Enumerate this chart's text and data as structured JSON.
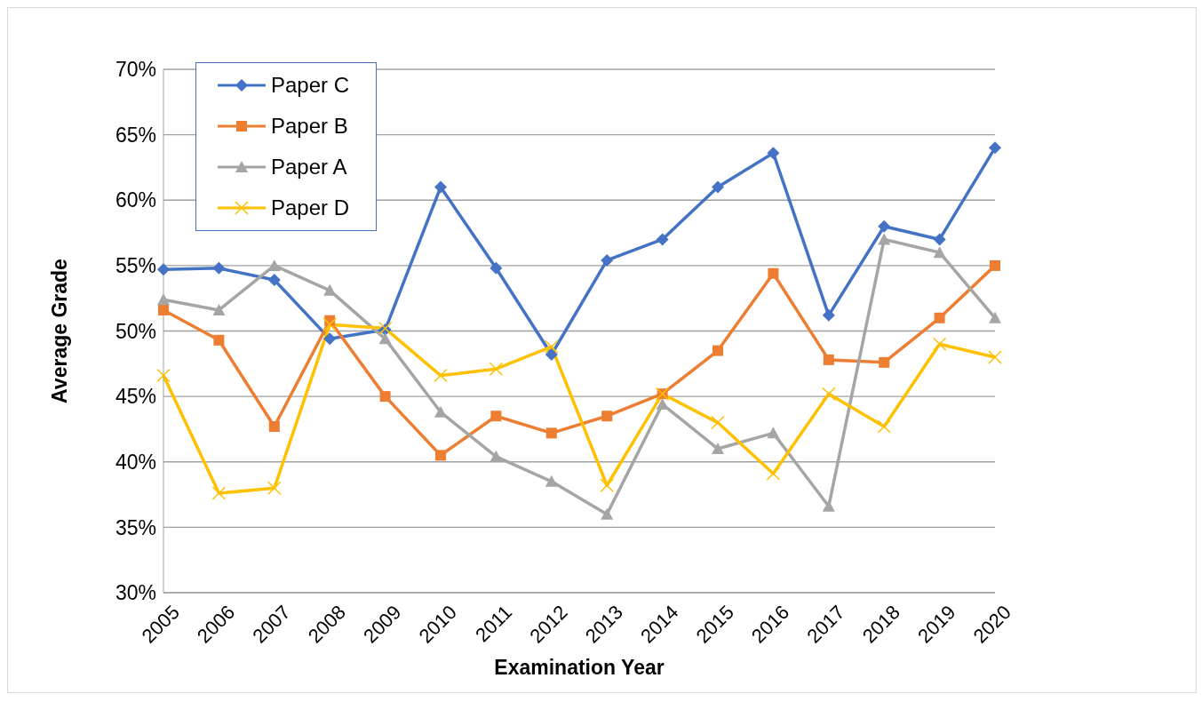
{
  "chart_data": {
    "type": "line",
    "xlabel": "Examination Year",
    "ylabel": "Average Grade",
    "categories": [
      "2005",
      "2006",
      "2007",
      "2008",
      "2009",
      "2010",
      "2011",
      "2012",
      "2013",
      "2014",
      "2015",
      "2016",
      "2017",
      "2018",
      "2019",
      "2020"
    ],
    "series": [
      {
        "name": "Paper C",
        "color": "#4472c4",
        "marker": "diamond",
        "values": [
          54.7,
          54.8,
          53.9,
          49.4,
          50.1,
          61.0,
          54.8,
          48.2,
          55.4,
          57.0,
          61.0,
          63.6,
          51.2,
          58.0,
          57.0,
          64.0
        ]
      },
      {
        "name": "Paper B",
        "color": "#ed7d31",
        "marker": "square",
        "values": [
          51.6,
          49.3,
          42.7,
          50.8,
          45.0,
          40.5,
          43.5,
          42.2,
          43.5,
          45.2,
          48.5,
          54.4,
          47.8,
          47.6,
          51.0,
          55.0
        ]
      },
      {
        "name": "Paper A",
        "color": "#a5a5a5",
        "marker": "triangle",
        "values": [
          52.4,
          51.6,
          55.0,
          53.1,
          49.4,
          43.8,
          40.4,
          38.5,
          36.0,
          44.4,
          41.0,
          42.2,
          36.6,
          57.0,
          56.0,
          51.0
        ]
      },
      {
        "name": "Paper D",
        "color": "#ffc000",
        "marker": "cross",
        "values": [
          46.6,
          37.6,
          38.0,
          50.5,
          50.2,
          46.6,
          47.1,
          48.8,
          38.2,
          45.2,
          43.0,
          39.1,
          45.2,
          42.7,
          49.0,
          48.0
        ]
      }
    ],
    "ylim": [
      30,
      70
    ],
    "yticks": [
      {
        "value": 30,
        "label": "30%"
      },
      {
        "value": 35,
        "label": "35%"
      },
      {
        "value": 40,
        "label": "40%"
      },
      {
        "value": 45,
        "label": "45%"
      },
      {
        "value": 50,
        "label": "50%"
      },
      {
        "value": 55,
        "label": "55%"
      },
      {
        "value": 60,
        "label": "60%"
      },
      {
        "value": 65,
        "label": "65%"
      },
      {
        "value": 70,
        "label": "70%"
      }
    ],
    "grid": "y",
    "legend": "top left",
    "line_style": "solid"
  }
}
